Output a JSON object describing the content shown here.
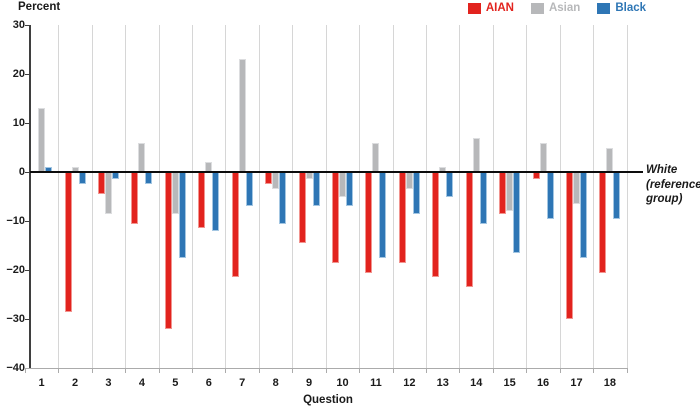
{
  "title": "Percent",
  "xlabel": "Question",
  "annotation_text": "White\n(reference\ngroup)",
  "y_tick_labels": [
    "30",
    "20",
    "10",
    "0",
    "−10",
    "−20",
    "−30",
    "−40"
  ],
  "y_tick_values": [
    30,
    20,
    10,
    0,
    -10,
    -20,
    -30,
    -40
  ],
  "colors": {
    "aian": "#e2231e",
    "asian": "#b7b8ba",
    "black": "#2e76b5",
    "grid": "#d6d6d6",
    "axis_dark": "#3f3f3f",
    "zero_line": "#0d0d0d",
    "bottom_axis": "#ababab"
  },
  "chart_data": {
    "type": "bar",
    "title": "Percent",
    "xlabel": "Question",
    "ylabel": "Percent",
    "ylim": [
      -40,
      30
    ],
    "grid": "vertical",
    "legend_position": "top-right",
    "reference_note": "White (reference group)",
    "categories": [
      "1",
      "2",
      "3",
      "4",
      "5",
      "6",
      "7",
      "8",
      "9",
      "10",
      "11",
      "12",
      "13",
      "14",
      "15",
      "16",
      "17",
      "18"
    ],
    "series": [
      {
        "name": "AIAN",
        "color": "#e2231e",
        "edge": "#f2948f",
        "values": [
          0,
          -28.5,
          -4.5,
          -10.5,
          -32,
          -11.5,
          -21.5,
          -2.5,
          -14.5,
          -18.5,
          -20.5,
          -18.5,
          -21.5,
          -23.5,
          -8.5,
          -1.5,
          -30,
          -20.5
        ]
      },
      {
        "name": "Asian",
        "color": "#b7b8ba",
        "edge": "#dcdddf",
        "values": [
          13,
          1,
          -8.5,
          6,
          -8.5,
          2,
          23,
          -3.5,
          -1.5,
          -5,
          6,
          -3.5,
          1,
          7,
          -8,
          6,
          -6.5,
          5
        ]
      },
      {
        "name": "Black",
        "color": "#2e76b5",
        "edge": "#a3c6e2",
        "values": [
          1,
          -2.5,
          -1.5,
          -2.5,
          -17.5,
          -12,
          -7,
          -10.5,
          -7,
          -7,
          -17.5,
          -8.5,
          -5,
          -10.5,
          -16.5,
          -9.5,
          -17.5,
          -9.5
        ]
      }
    ]
  }
}
